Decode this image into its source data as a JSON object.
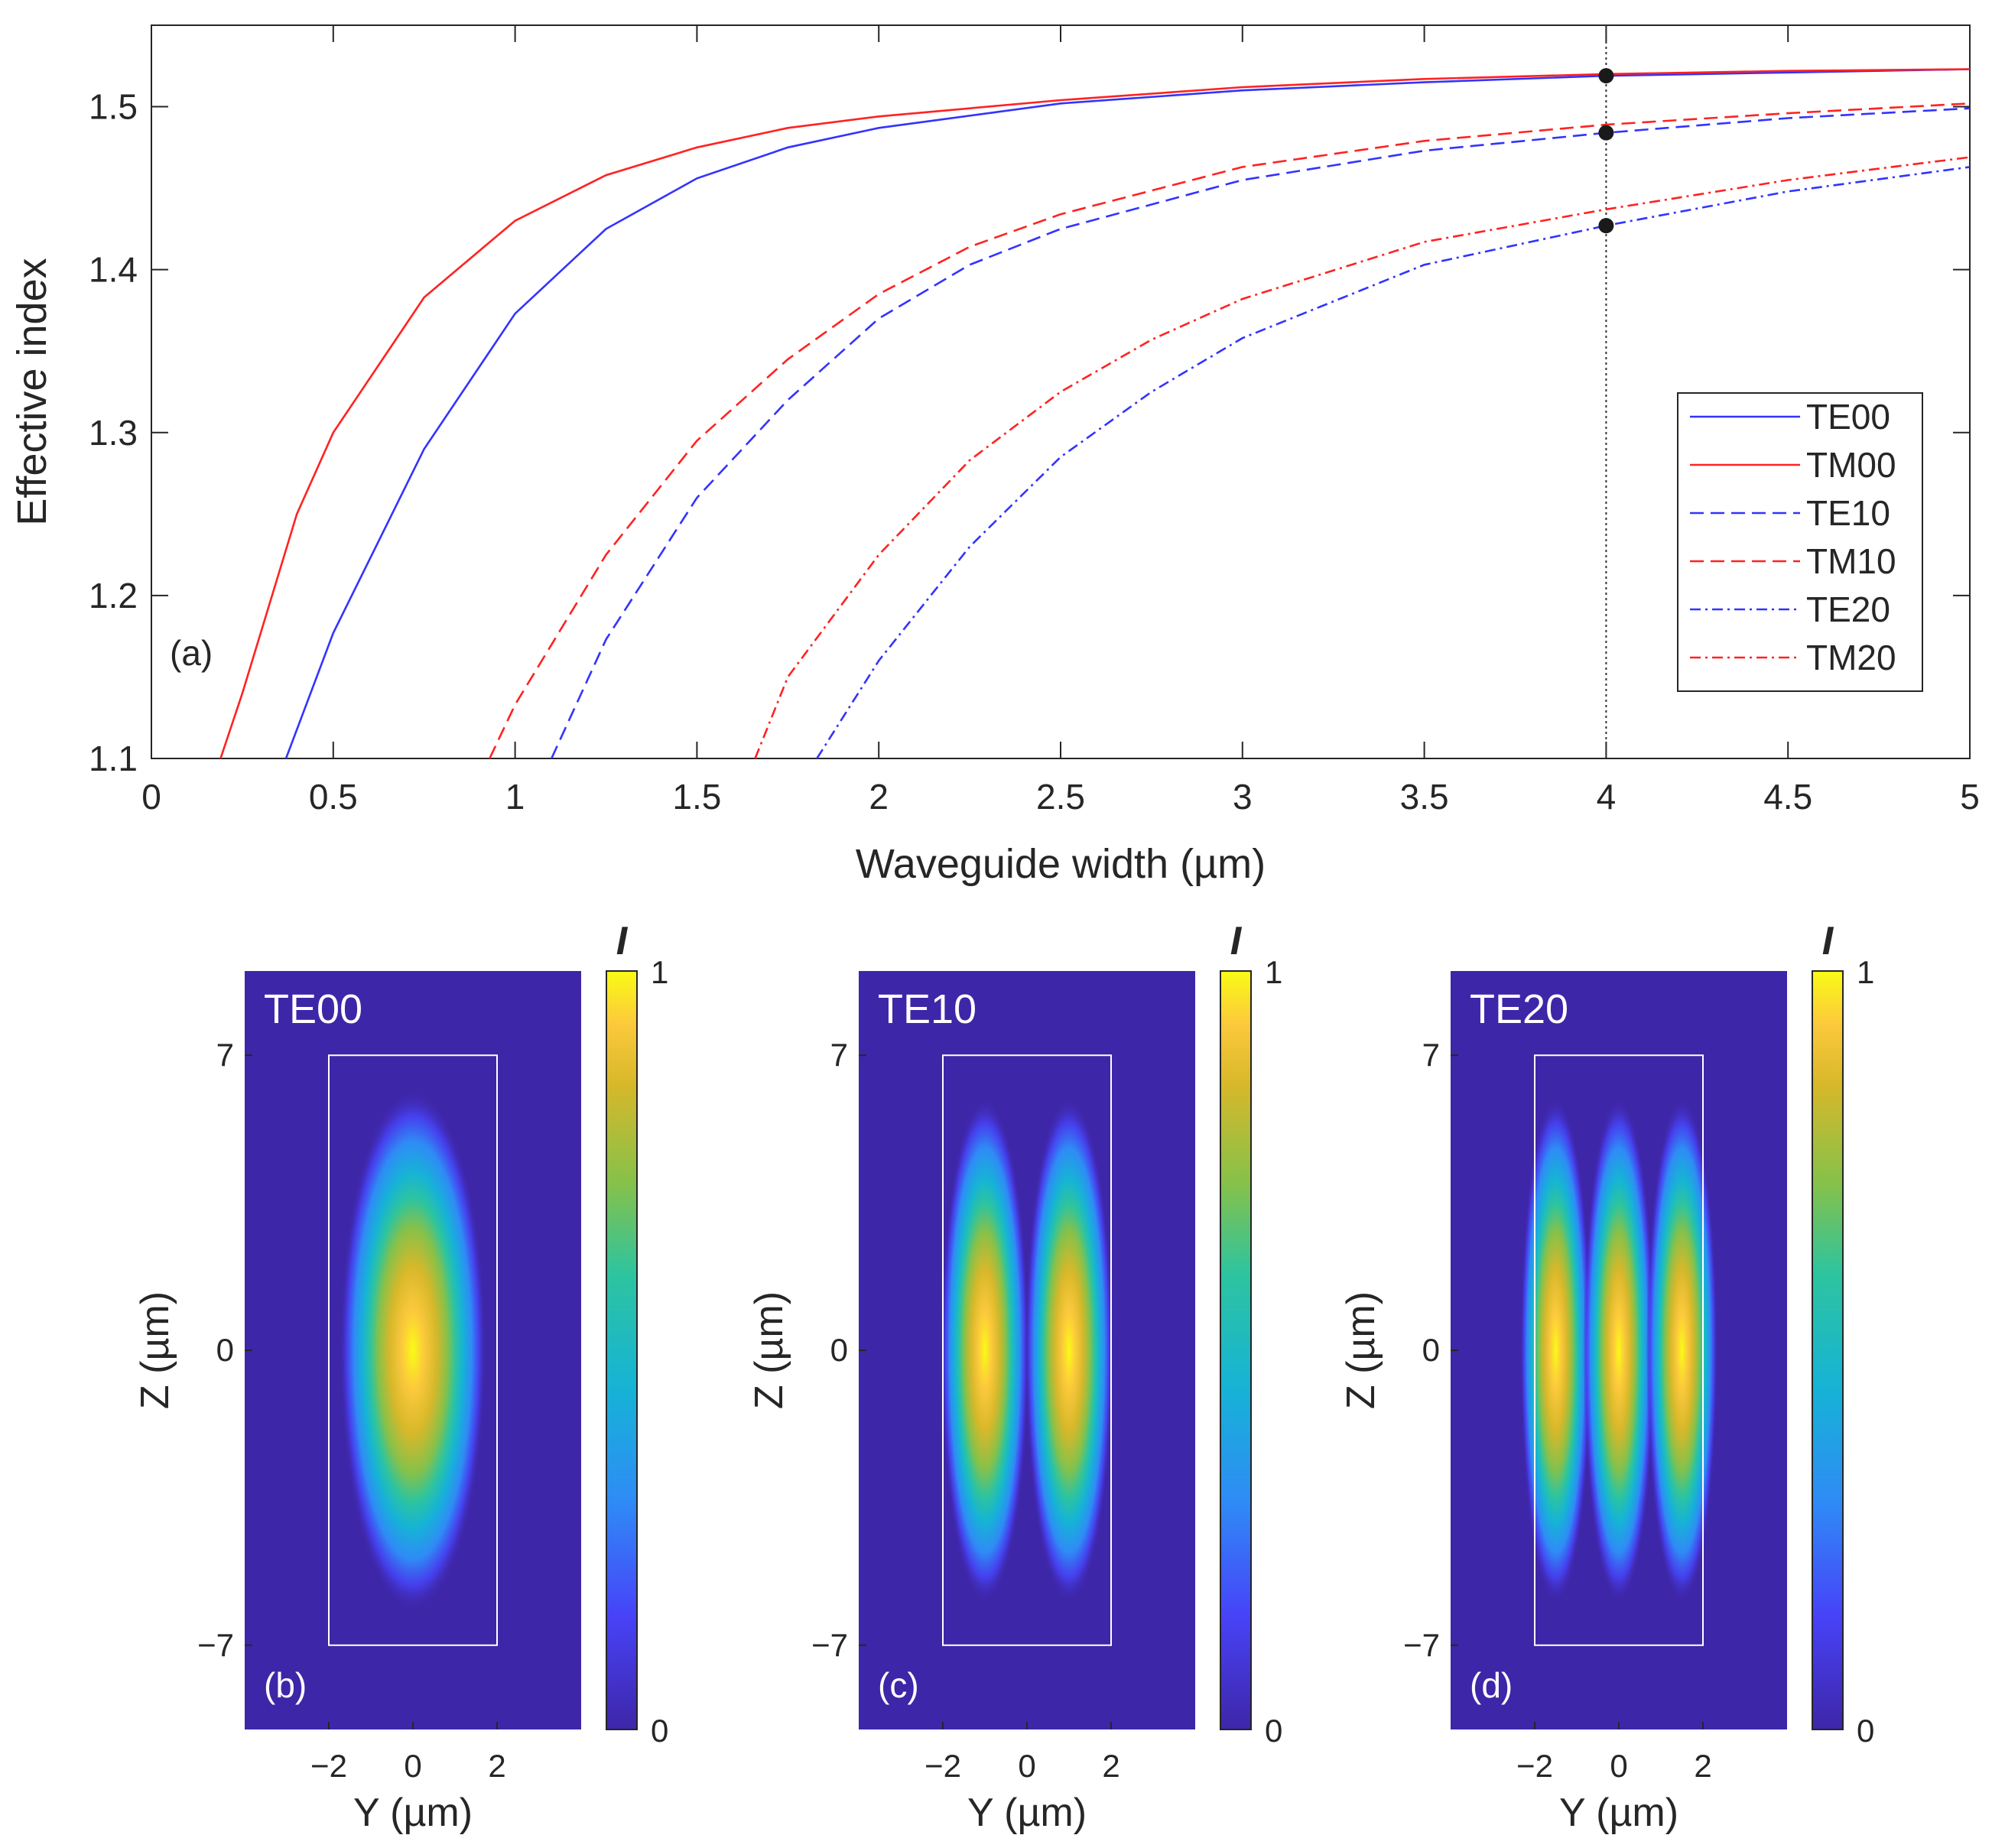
{
  "chart_data": [
    {
      "type": "line",
      "panel_label": "(a)",
      "xlabel": "Waveguide width (µm)",
      "ylabel": "Effective index",
      "xlim": [
        0,
        5
      ],
      "ylim": [
        1.1,
        1.55
      ],
      "xticks": [
        0,
        0.5,
        1,
        1.5,
        2,
        2.5,
        3,
        3.5,
        4,
        4.5,
        5
      ],
      "xtick_labels": [
        "0",
        "0.5",
        "1",
        "1.5",
        "2",
        "2.5",
        "3",
        "3.5",
        "4",
        "4.5",
        "5"
      ],
      "yticks": [
        1.1,
        1.2,
        1.3,
        1.4,
        1.5
      ],
      "ytick_labels": [
        "1.1",
        "1.2",
        "1.3",
        "1.4",
        "1.5"
      ],
      "grid": false,
      "legend_position": "right",
      "reference_line": {
        "x": 4,
        "style": "dotted"
      },
      "markers": [
        {
          "x": 4,
          "y": 1.519
        },
        {
          "x": 4,
          "y": 1.484
        },
        {
          "x": 4,
          "y": 1.427
        }
      ],
      "series": [
        {
          "name": "TE00",
          "color": "#3333ff",
          "style": "solid",
          "x": [
            0.37,
            0.5,
            0.75,
            1.0,
            1.25,
            1.5,
            1.75,
            2.0,
            2.5,
            3.0,
            3.5,
            4.0,
            4.5,
            5.0
          ],
          "y": [
            1.1,
            1.177,
            1.29,
            1.373,
            1.425,
            1.456,
            1.475,
            1.487,
            1.502,
            1.51,
            1.515,
            1.519,
            1.521,
            1.523
          ]
        },
        {
          "name": "TM00",
          "color": "#ff2222",
          "style": "solid",
          "x": [
            0.19,
            0.25,
            0.4,
            0.5,
            0.75,
            1.0,
            1.25,
            1.5,
            1.75,
            2.0,
            2.5,
            3.0,
            3.5,
            4.0,
            4.5,
            5.0
          ],
          "y": [
            1.1,
            1.14,
            1.25,
            1.3,
            1.383,
            1.43,
            1.458,
            1.475,
            1.487,
            1.494,
            1.504,
            1.512,
            1.517,
            1.52,
            1.522,
            1.523
          ]
        },
        {
          "name": "TE10",
          "color": "#3333ff",
          "style": "dashed",
          "x": [
            1.1,
            1.25,
            1.5,
            1.75,
            2.0,
            2.25,
            2.5,
            3.0,
            3.5,
            4.0,
            4.5,
            5.0
          ],
          "y": [
            1.1,
            1.173,
            1.26,
            1.32,
            1.37,
            1.403,
            1.425,
            1.455,
            1.473,
            1.484,
            1.493,
            1.499
          ]
        },
        {
          "name": "TM10",
          "color": "#ff2222",
          "style": "dashed",
          "x": [
            0.93,
            1.0,
            1.25,
            1.5,
            1.75,
            2.0,
            2.25,
            2.5,
            3.0,
            3.5,
            4.0,
            4.5,
            5.0
          ],
          "y": [
            1.1,
            1.133,
            1.225,
            1.295,
            1.345,
            1.385,
            1.414,
            1.434,
            1.463,
            1.479,
            1.489,
            1.496,
            1.502
          ]
        },
        {
          "name": "TE20",
          "color": "#3333ff",
          "style": "dashdot",
          "x": [
            1.83,
            2.0,
            2.25,
            2.5,
            2.75,
            3.0,
            3.5,
            4.0,
            4.5,
            5.0
          ],
          "y": [
            1.1,
            1.16,
            1.23,
            1.285,
            1.325,
            1.358,
            1.403,
            1.427,
            1.448,
            1.463
          ]
        },
        {
          "name": "TM20",
          "color": "#ff2222",
          "style": "dashdot",
          "x": [
            1.66,
            1.75,
            2.0,
            2.25,
            2.5,
            2.75,
            3.0,
            3.5,
            4.0,
            4.5,
            5.0
          ],
          "y": [
            1.1,
            1.15,
            1.225,
            1.283,
            1.325,
            1.357,
            1.382,
            1.417,
            1.437,
            1.455,
            1.469
          ]
        }
      ]
    },
    {
      "type": "heatmap",
      "panel_label": "(b)",
      "mode": "TE00",
      "lobes": 1,
      "xlabel": "Y (µm)",
      "ylabel": "Z (µm)",
      "xticks": [
        -2,
        0,
        2
      ],
      "xtick_labels": [
        "−2",
        "0",
        "2"
      ],
      "yticks": [
        -7,
        0,
        7
      ],
      "ytick_labels": [
        "−7",
        "0",
        "7"
      ],
      "xlim": [
        -4,
        4
      ],
      "ylim": [
        -9,
        9
      ],
      "core": {
        "y": [
          -2,
          2
        ],
        "z": [
          -7,
          7
        ]
      },
      "colorbar": {
        "label": "I",
        "min_label": "0",
        "max_label": "1"
      }
    },
    {
      "type": "heatmap",
      "panel_label": "(c)",
      "mode": "TE10",
      "lobes": 2,
      "xlabel": "Y (µm)",
      "ylabel": "Z (µm)",
      "xticks": [
        -2,
        0,
        2
      ],
      "xtick_labels": [
        "−2",
        "0",
        "2"
      ],
      "yticks": [
        -7,
        0,
        7
      ],
      "ytick_labels": [
        "−7",
        "0",
        "7"
      ],
      "xlim": [
        -4,
        4
      ],
      "ylim": [
        -9,
        9
      ],
      "core": {
        "y": [
          -2,
          2
        ],
        "z": [
          -7,
          7
        ]
      },
      "colorbar": {
        "label": "I",
        "min_label": "0",
        "max_label": "1"
      }
    },
    {
      "type": "heatmap",
      "panel_label": "(d)",
      "mode": "TE20",
      "lobes": 3,
      "xlabel": "Y (µm)",
      "ylabel": "Z (µm)",
      "xticks": [
        -2,
        0,
        2
      ],
      "xtick_labels": [
        "−2",
        "0",
        "2"
      ],
      "yticks": [
        -7,
        0,
        7
      ],
      "ytick_labels": [
        "−7",
        "0",
        "7"
      ],
      "xlim": [
        -4,
        4
      ],
      "ylim": [
        -9,
        9
      ],
      "core": {
        "y": [
          -2,
          2
        ],
        "z": [
          -7,
          7
        ]
      },
      "colorbar": {
        "label": "I",
        "min_label": "0",
        "max_label": "1"
      }
    }
  ]
}
